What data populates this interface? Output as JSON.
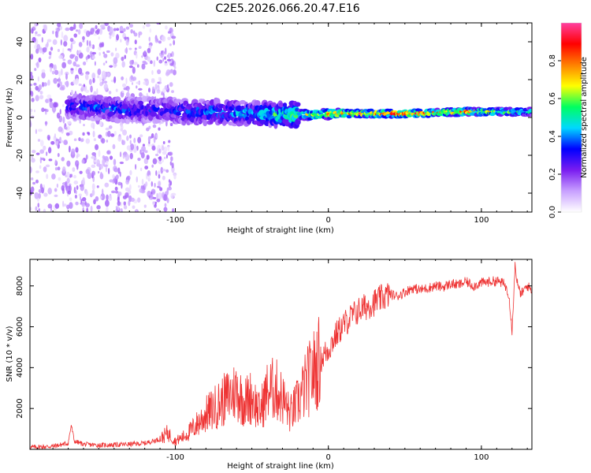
{
  "figure_title": "C2E5.2026.066.20.47.E16",
  "colors": {
    "background": "#ffffff",
    "axis": "#000000",
    "snr_line": "#ee3333"
  },
  "chart_data": [
    {
      "type": "heatmap",
      "name": "spectrogram",
      "title": "C2E5.2026.066.20.47.E16",
      "xlabel": "Height of straight line (km)",
      "ylabel": "Frequency (Hz)",
      "xlim": [
        -195,
        133
      ],
      "ylim": [
        -50,
        50
      ],
      "xticks": [
        -100,
        0,
        100
      ],
      "xtick_labels": [
        "-100",
        "0",
        "100"
      ],
      "yticks": [
        -40,
        -20,
        0,
        20,
        40
      ],
      "ytick_labels": [
        "-40",
        "-20",
        "0",
        "20",
        "40"
      ],
      "colorbar": {
        "label": "Normalized spectral amplitude",
        "range": [
          0,
          1
        ],
        "ticks": [
          0,
          0.2,
          0.4,
          0.6,
          0.8
        ],
        "tick_labels": [
          "0.0",
          "0.2",
          "0.4",
          "0.6",
          "0.8"
        ],
        "colormap": [
          "#ffffff",
          "#c8a0ff",
          "#7a1cf0",
          "#0000ff",
          "#00d8ff",
          "#00ff60",
          "#ffff00",
          "#ff8000",
          "#ff0000",
          "#ff40a0"
        ]
      },
      "ridge": {
        "x": [
          -170,
          -150,
          -130,
          -110,
          -90,
          -70,
          -50,
          -30,
          -10,
          10,
          30,
          50,
          70,
          90,
          110,
          130
        ],
        "center_freq": [
          6,
          5,
          4,
          4,
          3,
          3,
          2,
          1.5,
          1.5,
          2,
          2,
          2,
          2.5,
          3,
          3,
          3
        ],
        "peak_amplitude": [
          0.35,
          0.4,
          0.38,
          0.35,
          0.4,
          0.45,
          0.5,
          0.6,
          0.7,
          0.85,
          0.95,
          0.95,
          0.85,
          0.9,
          0.75,
          0.6
        ]
      }
    },
    {
      "type": "line",
      "name": "snr",
      "xlabel": "Height of straight line (km)",
      "ylabel": "SNR (10 * v/v)",
      "xlim": [
        -195,
        133
      ],
      "ylim": [
        0,
        9300
      ],
      "xticks": [
        -100,
        0,
        100
      ],
      "xtick_labels": [
        "-100",
        "0",
        "100"
      ],
      "yticks": [
        2000,
        4000,
        6000,
        8000
      ],
      "ytick_labels": [
        "2000",
        "4000",
        "6000",
        "8000"
      ],
      "series": [
        {
          "name": "SNR",
          "color": "#ee3333",
          "x": [
            -195,
            -180,
            -170,
            -168,
            -166,
            -160,
            -150,
            -140,
            -130,
            -120,
            -110,
            -105,
            -100,
            -95,
            -90,
            -85,
            -80,
            -75,
            -70,
            -65,
            -60,
            -55,
            -50,
            -45,
            -40,
            -35,
            -30,
            -25,
            -20,
            -15,
            -10,
            -5,
            0,
            5,
            10,
            15,
            20,
            25,
            30,
            35,
            40,
            45,
            50,
            55,
            60,
            65,
            70,
            75,
            80,
            85,
            90,
            95,
            100,
            105,
            110,
            115,
            118,
            120,
            122,
            124,
            126,
            130,
            133
          ],
          "y": [
            100,
            150,
            300,
            1200,
            400,
            250,
            200,
            220,
            250,
            300,
            500,
            800,
            400,
            600,
            900,
            1300,
            1700,
            2000,
            2300,
            2600,
            2900,
            2300,
            2600,
            1800,
            2800,
            3000,
            2500,
            1700,
            2300,
            3100,
            3800,
            4400,
            4900,
            5600,
            6100,
            6500,
            6800,
            7000,
            7200,
            7400,
            7600,
            7500,
            7700,
            7900,
            7800,
            7900,
            8000,
            7950,
            8100,
            8050,
            8200,
            8000,
            8150,
            8200,
            8250,
            8100,
            7600,
            5800,
            9000,
            7900,
            7600,
            8000,
            7800
          ]
        }
      ],
      "grid": false
    }
  ]
}
